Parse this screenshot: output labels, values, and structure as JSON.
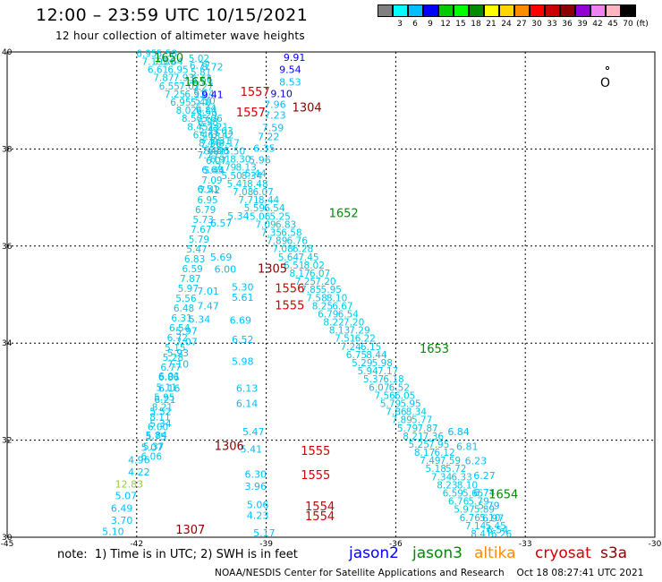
{
  "header": {
    "title": "12:00 – 23:59 UTC 10/15/2021",
    "subtitle": "12 hour collection of altimeter wave heights"
  },
  "legend": {
    "unit_label": "(ft)",
    "colors": [
      "#808080",
      "#00ffff",
      "#00bfff",
      "#0000ff",
      "#00cd00",
      "#00ff00",
      "#008b00",
      "#ffff00",
      "#ffd700",
      "#ff8c00",
      "#ff0000",
      "#cd0000",
      "#8b0000",
      "#9400d3",
      "#ee82ee",
      "#ffb6c1",
      "#000000"
    ],
    "ticks": [
      "3",
      "6",
      "9",
      "12",
      "15",
      "18",
      "21",
      "24",
      "27",
      "30",
      "33",
      "36",
      "39",
      "42",
      "45",
      "70"
    ]
  },
  "axes": {
    "lon_ticks": [
      "-45",
      "-42",
      "-39",
      "-36",
      "-33",
      "-30"
    ],
    "lat_ticks": [
      "40",
      "38",
      "36",
      "34",
      "32",
      "30"
    ]
  },
  "tracks": {
    "pass_labels": [
      {
        "text": "1650",
        "color": "#008b00",
        "lon": -41.6,
        "lat": 39.8
      },
      {
        "text": "1651",
        "color": "#008b00",
        "lon": -40.9,
        "lat": 39.3
      },
      {
        "text": "1557",
        "color": "#cd0000",
        "lon": -39.6,
        "lat": 39.1
      },
      {
        "text": "1557",
        "color": "#cd0000",
        "lon": -39.7,
        "lat": 38.67
      },
      {
        "text": "1304",
        "color": "#8b0000",
        "lon": -38.4,
        "lat": 38.77
      },
      {
        "text": "1652",
        "color": "#008b00",
        "lon": -37.55,
        "lat": 36.6
      },
      {
        "text": "1305",
        "color": "#8b0000",
        "lon": -39.2,
        "lat": 35.45
      },
      {
        "text": "1556",
        "color": "#cd0000",
        "lon": -38.8,
        "lat": 35.05
      },
      {
        "text": "1555",
        "color": "#cd0000",
        "lon": -38.8,
        "lat": 34.7
      },
      {
        "text": "1653",
        "color": "#008b00",
        "lon": -35.45,
        "lat": 33.8
      },
      {
        "text": "1306",
        "color": "#8b0000",
        "lon": -40.2,
        "lat": 31.8
      },
      {
        "text": "1555",
        "color": "#cd0000",
        "lon": -38.2,
        "lat": 31.7
      },
      {
        "text": "1555",
        "color": "#cd0000",
        "lon": -38.2,
        "lat": 31.2
      },
      {
        "text": "1654",
        "color": "#008b00",
        "lon": -33.85,
        "lat": 30.8
      },
      {
        "text": "1554",
        "color": "#cd0000",
        "lon": -38.1,
        "lat": 30.55
      },
      {
        "text": "1554",
        "color": "#cd0000",
        "lon": -38.1,
        "lat": 30.35
      },
      {
        "text": "1307",
        "color": "#8b0000",
        "lon": -41.1,
        "lat": 30.07
      }
    ],
    "wave_labels": [
      {
        "text": "9.91",
        "color": "#0000ff",
        "lon": -38.6,
        "lat": 39.82
      },
      {
        "text": "9.54",
        "color": "#0000ff",
        "lon": -38.7,
        "lat": 39.57
      },
      {
        "text": "8.53",
        "color": "#00bfff",
        "lon": -38.7,
        "lat": 39.31
      },
      {
        "text": "9.10",
        "color": "#0000ff",
        "lon": -38.9,
        "lat": 39.07
      },
      {
        "text": "7.96",
        "color": "#00bfff",
        "lon": -39.05,
        "lat": 38.85
      },
      {
        "text": "7.23",
        "color": "#00bfff",
        "lon": -39.05,
        "lat": 38.63
      },
      {
        "text": "7.59",
        "color": "#00bfff",
        "lon": -39.1,
        "lat": 38.37
      },
      {
        "text": "7.22",
        "color": "#00bfff",
        "lon": -39.2,
        "lat": 38.18
      },
      {
        "text": "6.35",
        "color": "#00bfff",
        "lon": -39.3,
        "lat": 37.94
      },
      {
        "text": "9.41",
        "color": "#0000ff",
        "lon": -40.5,
        "lat": 39.05
      },
      {
        "text": "7.86",
        "color": "#00bfff",
        "lon": -41.6,
        "lat": 39.73
      },
      {
        "text": "8.72",
        "color": "#00bfff",
        "lon": -40.5,
        "lat": 39.62
      },
      {
        "text": "5.97",
        "color": "#00bfff",
        "lon": -41.1,
        "lat": 34.18
      },
      {
        "text": "7.07",
        "color": "#00bfff",
        "lon": -41.1,
        "lat": 33.96
      },
      {
        "text": "5.93",
        "color": "#00bfff",
        "lon": -41.3,
        "lat": 33.73
      },
      {
        "text": "7.10",
        "color": "#00bfff",
        "lon": -41.3,
        "lat": 33.5
      },
      {
        "text": "6.01",
        "color": "#00bfff",
        "lon": -41.5,
        "lat": 33.25
      },
      {
        "text": "6.16",
        "color": "#00bfff",
        "lon": -41.5,
        "lat": 33.0
      },
      {
        "text": "6.21",
        "color": "#00bfff",
        "lon": -41.6,
        "lat": 32.77
      },
      {
        "text": "5.52",
        "color": "#00bfff",
        "lon": -41.7,
        "lat": 32.52
      },
      {
        "text": "5.34",
        "color": "#00bfff",
        "lon": -41.7,
        "lat": 32.27
      },
      {
        "text": "5.84",
        "color": "#00bfff",
        "lon": -41.8,
        "lat": 32.03
      },
      {
        "text": "5.07",
        "color": "#00bfff",
        "lon": -41.9,
        "lat": 31.78
      },
      {
        "text": "4.96",
        "color": "#00bfff",
        "lon": -42.2,
        "lat": 31.52
      },
      {
        "text": "4.22",
        "color": "#00bfff",
        "lon": -42.2,
        "lat": 31.27
      },
      {
        "text": "12.83",
        "color": "#9acd32",
        "lon": -42.5,
        "lat": 31.02
      },
      {
        "text": "5.07",
        "color": "#00bfff",
        "lon": -42.5,
        "lat": 30.78
      },
      {
        "text": "6.49",
        "color": "#00bfff",
        "lon": -42.6,
        "lat": 30.53
      },
      {
        "text": "3.70",
        "color": "#00bfff",
        "lon": -42.6,
        "lat": 30.28
      },
      {
        "text": "5.10",
        "color": "#00bfff",
        "lon": -42.8,
        "lat": 30.05
      },
      {
        "text": "6.69",
        "color": "#00bfff",
        "lon": -39.85,
        "lat": 34.4
      },
      {
        "text": "6.52",
        "color": "#00bfff",
        "lon": -39.8,
        "lat": 34.0
      },
      {
        "text": "5.98",
        "color": "#00bfff",
        "lon": -39.8,
        "lat": 33.55
      },
      {
        "text": "6.13",
        "color": "#00bfff",
        "lon": -39.7,
        "lat": 33.0
      },
      {
        "text": "6.14",
        "color": "#00bfff",
        "lon": -39.7,
        "lat": 32.68
      },
      {
        "text": "5.47",
        "color": "#00bfff",
        "lon": -39.55,
        "lat": 32.1
      },
      {
        "text": "5.41",
        "color": "#00bfff",
        "lon": -39.6,
        "lat": 31.74
      },
      {
        "text": "6.30",
        "color": "#00bfff",
        "lon": -39.5,
        "lat": 31.23
      },
      {
        "text": "3.96",
        "color": "#00bfff",
        "lon": -39.5,
        "lat": 30.98
      },
      {
        "text": "5.06",
        "color": "#00bfff",
        "lon": -39.45,
        "lat": 30.6
      },
      {
        "text": "4.23",
        "color": "#00bfff",
        "lon": -39.45,
        "lat": 30.38
      },
      {
        "text": "5.17",
        "color": "#00bfff",
        "lon": -39.3,
        "lat": 30.02
      },
      {
        "text": "7.01",
        "color": "#00bfff",
        "lon": -40.6,
        "lat": 35.0
      },
      {
        "text": "7.47",
        "color": "#00bfff",
        "lon": -40.6,
        "lat": 34.7
      },
      {
        "text": "5.34",
        "color": "#00bfff",
        "lon": -40.8,
        "lat": 34.42
      },
      {
        "text": "6.00",
        "color": "#00bfff",
        "lon": -40.2,
        "lat": 35.45
      },
      {
        "text": "5.34",
        "color": "#00bfff",
        "lon": -39.9,
        "lat": 36.55
      },
      {
        "text": "6.57",
        "color": "#00bfff",
        "lon": -40.3,
        "lat": 36.4
      },
      {
        "text": "6.51",
        "color": "#00bfff",
        "lon": -40.6,
        "lat": 37.1
      },
      {
        "text": "6.63",
        "color": "#00bfff",
        "lon": -40.5,
        "lat": 37.5
      },
      {
        "text": "5.69",
        "color": "#00bfff",
        "lon": -40.3,
        "lat": 35.7
      },
      {
        "text": "7.77",
        "color": "#00bfff",
        "lon": -40.6,
        "lat": 37.8
      },
      {
        "text": "5.61",
        "color": "#00bfff",
        "lon": -39.8,
        "lat": 34.87
      },
      {
        "text": "5.30",
        "color": "#00bfff",
        "lon": -39.8,
        "lat": 35.08
      },
      {
        "text": "5.96",
        "color": "#00bfff",
        "lon": -39.4,
        "lat": 37.7
      },
      {
        "text": "5.44",
        "color": "#00bfff",
        "lon": -39.5,
        "lat": 37.43
      },
      {
        "text": "6.84",
        "color": "#00bfff",
        "lon": -34.8,
        "lat": 32.1
      },
      {
        "text": "6.81",
        "color": "#00bfff",
        "lon": -34.6,
        "lat": 31.8
      },
      {
        "text": "6.23",
        "color": "#00bfff",
        "lon": -34.4,
        "lat": 31.5
      },
      {
        "text": "6.27",
        "color": "#00bfff",
        "lon": -34.2,
        "lat": 31.2
      },
      {
        "text": "6.54",
        "color": "#00bfff",
        "lon": -33.9,
        "lat": 30.08
      },
      {
        "text": "6.97",
        "color": "#00bfff",
        "lon": -34.0,
        "lat": 30.32
      },
      {
        "text": "5.79",
        "color": "#00bfff",
        "lon": -34.1,
        "lat": 30.58
      },
      {
        "text": "6.74",
        "color": "#00bfff",
        "lon": -34.2,
        "lat": 30.85
      }
    ]
  },
  "footer": {
    "note": "note:  1) Time is in UTC; 2) SWH is in feet",
    "satellites": [
      {
        "name": "jason2",
        "color": "#0000ff"
      },
      {
        "name": "jason3",
        "color": "#008b00"
      },
      {
        "name": "altika",
        "color": "#ff8c00"
      },
      {
        "name": "cryosat",
        "color": "#cd0000"
      },
      {
        "name": "s3a",
        "color": "#8b0000"
      }
    ],
    "credit": "NOAA/NESDIS Center for Satellite Applications and Research    Oct 18 08:27:41 UTC 2021"
  }
}
